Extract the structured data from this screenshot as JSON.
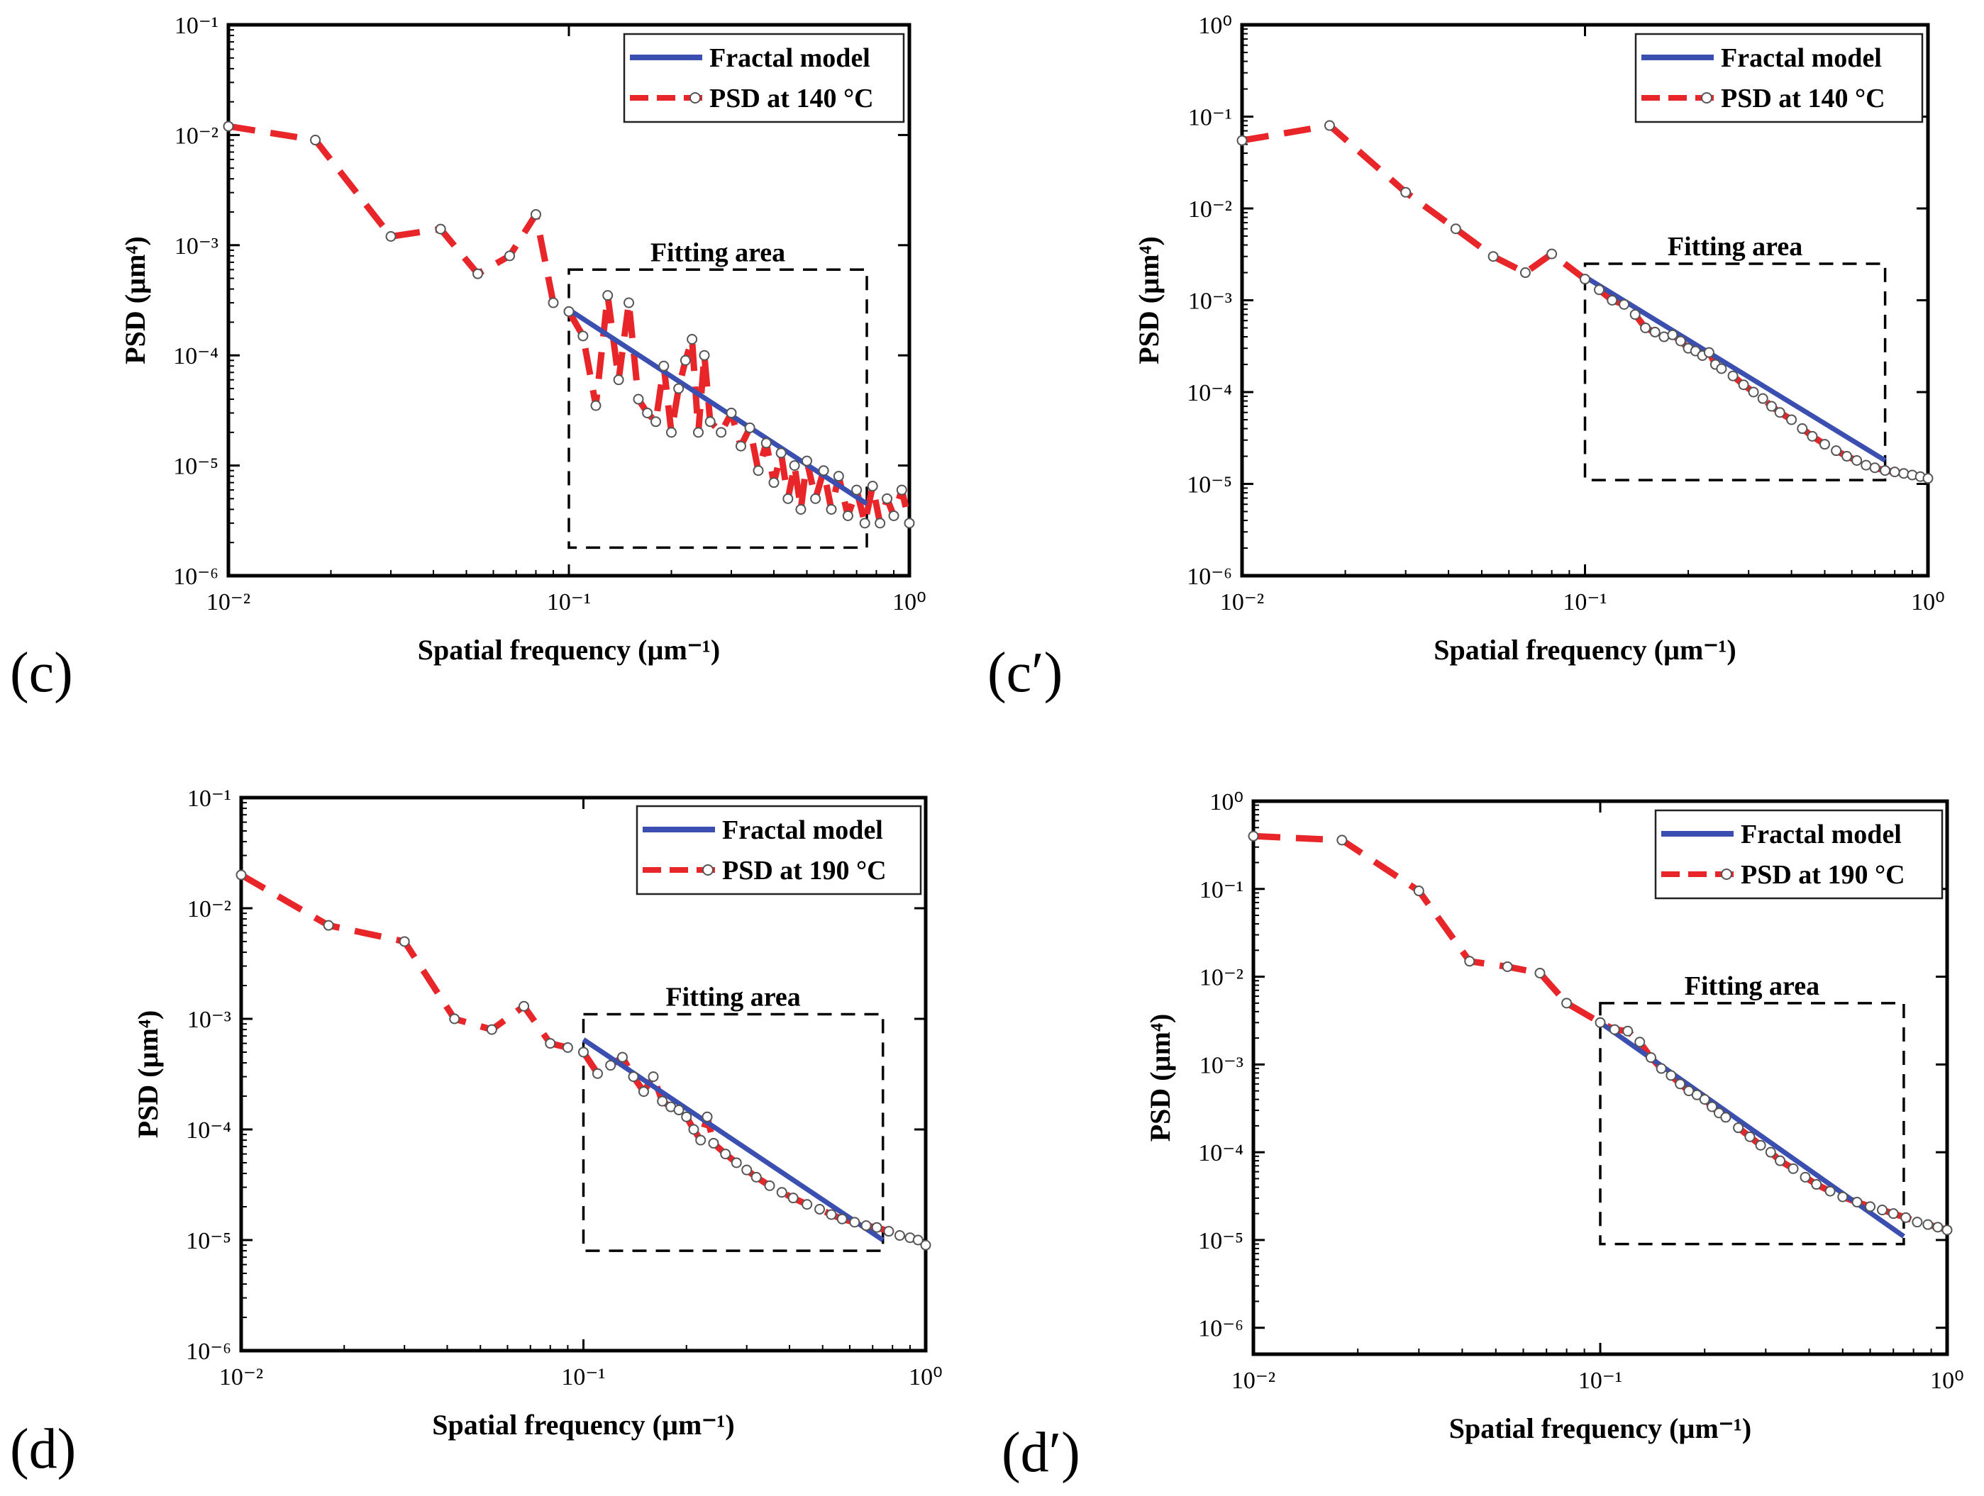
{
  "figure": {
    "x_label": "Spatial frequency (µm⁻¹)",
    "y_label": "PSD (µm⁴)",
    "legend_fit": "Fractal model",
    "fitting_area_label": "Fitting area",
    "colors": {
      "fit": "#3a4fb0",
      "psd": "#e8262a",
      "marker_fill": "#ffffff",
      "marker_edge": "#555555",
      "axis": "#000000"
    }
  },
  "chart_data": [
    {
      "panel": "(c)",
      "type": "line",
      "x_scale": "log",
      "y_scale": "log",
      "xlim": [
        0.01,
        1
      ],
      "ylim": [
        1e-06,
        0.1
      ],
      "x_ticks": [
        0.01,
        0.1,
        1
      ],
      "x_tick_labels": [
        "10⁻²",
        "10⁻¹",
        "10⁰"
      ],
      "y_ticks": [
        1e-06,
        1e-05,
        0.0001,
        0.001,
        0.01,
        0.1
      ],
      "y_tick_labels": [
        "10⁻⁶",
        "10⁻⁵",
        "10⁻⁴",
        "10⁻³",
        "10⁻²",
        "10⁻¹"
      ],
      "xlabel": "Spatial frequency (µm⁻¹)",
      "ylabel": "PSD (µm⁴)",
      "legend_psd": "PSD at 140 °C",
      "series": [
        {
          "name": "PSD at 140 °C",
          "x": [
            0.01,
            0.018,
            0.03,
            0.042,
            0.054,
            0.067,
            0.08,
            0.09,
            0.1,
            0.11,
            0.12,
            0.13,
            0.14,
            0.15,
            0.16,
            0.17,
            0.18,
            0.19,
            0.2,
            0.21,
            0.22,
            0.23,
            0.24,
            0.25,
            0.26,
            0.28,
            0.3,
            0.32,
            0.34,
            0.36,
            0.38,
            0.4,
            0.42,
            0.44,
            0.46,
            0.48,
            0.5,
            0.53,
            0.56,
            0.59,
            0.62,
            0.66,
            0.7,
            0.74,
            0.78,
            0.82,
            0.86,
            0.9,
            0.95,
            1.0
          ],
          "y": [
            0.012,
            0.009,
            0.0012,
            0.0014,
            0.00055,
            0.0008,
            0.0019,
            0.0003,
            0.00025,
            0.00015,
            3.5e-05,
            0.00035,
            6e-05,
            0.0003,
            4e-05,
            3e-05,
            2.5e-05,
            8e-05,
            2e-05,
            5e-05,
            9e-05,
            0.00014,
            2e-05,
            0.0001,
            2.5e-05,
            2e-05,
            3e-05,
            1.5e-05,
            2.2e-05,
            9e-06,
            1.6e-05,
            7e-06,
            1.3e-05,
            5e-06,
            1e-05,
            4e-06,
            1.1e-05,
            5e-06,
            9e-06,
            4e-06,
            8e-06,
            3.5e-06,
            6e-06,
            3e-06,
            6.5e-06,
            3e-06,
            5e-06,
            3.5e-06,
            6e-06,
            3e-06
          ]
        },
        {
          "name": "Fractal model",
          "x": [
            0.1,
            0.75
          ],
          "y": [
            0.00026,
            4.5e-06
          ]
        }
      ],
      "fitting_area": {
        "x": [
          0.1,
          0.75
        ],
        "y": [
          1.8e-06,
          0.0006
        ]
      }
    },
    {
      "panel": "(c′)",
      "type": "line",
      "x_scale": "log",
      "y_scale": "log",
      "xlim": [
        0.01,
        1
      ],
      "ylim": [
        1e-06,
        1
      ],
      "x_ticks": [
        0.01,
        0.1,
        1
      ],
      "x_tick_labels": [
        "10⁻²",
        "10⁻¹",
        "10⁰"
      ],
      "y_ticks": [
        1e-06,
        1e-05,
        0.0001,
        0.001,
        0.01,
        0.1,
        1
      ],
      "y_tick_labels": [
        "10⁻⁶",
        "10⁻⁵",
        "10⁻⁴",
        "10⁻³",
        "10⁻²",
        "10⁻¹",
        "10⁰"
      ],
      "xlabel": "Spatial frequency (µm⁻¹)",
      "ylabel": "PSD (µm⁴)",
      "legend_psd": "PSD at 140 °C",
      "series": [
        {
          "name": "PSD at 140 °C",
          "x": [
            0.01,
            0.018,
            0.03,
            0.042,
            0.054,
            0.067,
            0.08,
            0.1,
            0.11,
            0.12,
            0.13,
            0.14,
            0.15,
            0.16,
            0.17,
            0.18,
            0.19,
            0.2,
            0.21,
            0.22,
            0.23,
            0.24,
            0.25,
            0.27,
            0.29,
            0.31,
            0.33,
            0.35,
            0.37,
            0.4,
            0.43,
            0.46,
            0.5,
            0.54,
            0.58,
            0.62,
            0.66,
            0.7,
            0.75,
            0.8,
            0.85,
            0.9,
            0.95,
            1.0
          ],
          "y": [
            0.055,
            0.08,
            0.015,
            0.006,
            0.003,
            0.002,
            0.0032,
            0.0017,
            0.0013,
            0.001,
            0.0009,
            0.0007,
            0.0005,
            0.00045,
            0.0004,
            0.00042,
            0.00036,
            0.0003,
            0.00028,
            0.00025,
            0.00027,
            0.0002,
            0.00018,
            0.00015,
            0.00012,
            0.0001,
            8.5e-05,
            7e-05,
            6e-05,
            5e-05,
            4e-05,
            3.3e-05,
            2.7e-05,
            2.3e-05,
            2e-05,
            1.8e-05,
            1.6e-05,
            1.5e-05,
            1.4e-05,
            1.35e-05,
            1.3e-05,
            1.25e-05,
            1.2e-05,
            1.15e-05
          ]
        },
        {
          "name": "Fractal model",
          "x": [
            0.1,
            0.75
          ],
          "y": [
            0.0018,
            1.8e-05
          ]
        }
      ],
      "fitting_area": {
        "x": [
          0.1,
          0.75
        ],
        "y": [
          1.1e-05,
          0.0025
        ]
      }
    },
    {
      "panel": "(d)",
      "type": "line",
      "x_scale": "log",
      "y_scale": "log",
      "xlim": [
        0.01,
        1
      ],
      "ylim": [
        1e-06,
        0.1
      ],
      "x_ticks": [
        0.01,
        0.1,
        1
      ],
      "x_tick_labels": [
        "10⁻²",
        "10⁻¹",
        "10⁰"
      ],
      "y_ticks": [
        1e-06,
        1e-05,
        0.0001,
        0.001,
        0.01,
        0.1
      ],
      "y_tick_labels": [
        "10⁻⁶",
        "10⁻⁵",
        "10⁻⁴",
        "10⁻³",
        "10⁻²",
        "10⁻¹"
      ],
      "xlabel": "Spatial frequency (µm⁻¹)",
      "ylabel": "PSD (µm⁴)",
      "legend_psd": "PSD at 190 °C",
      "series": [
        {
          "name": "PSD at 190 °C",
          "x": [
            0.01,
            0.018,
            0.03,
            0.042,
            0.054,
            0.067,
            0.08,
            0.09,
            0.1,
            0.11,
            0.12,
            0.13,
            0.14,
            0.15,
            0.16,
            0.17,
            0.18,
            0.19,
            0.2,
            0.21,
            0.22,
            0.23,
            0.24,
            0.26,
            0.28,
            0.3,
            0.32,
            0.35,
            0.38,
            0.41,
            0.45,
            0.49,
            0.53,
            0.57,
            0.62,
            0.67,
            0.72,
            0.78,
            0.84,
            0.9,
            0.95,
            1.0
          ],
          "y": [
            0.02,
            0.007,
            0.005,
            0.001,
            0.0008,
            0.0013,
            0.0006,
            0.00055,
            0.0005,
            0.00032,
            0.00038,
            0.00045,
            0.0003,
            0.00022,
            0.0003,
            0.00018,
            0.00016,
            0.00015,
            0.00013,
            0.0001,
            8e-05,
            0.00013,
            7.5e-05,
            6e-05,
            5e-05,
            4.3e-05,
            3.7e-05,
            3.1e-05,
            2.7e-05,
            2.4e-05,
            2.1e-05,
            1.9e-05,
            1.7e-05,
            1.55e-05,
            1.45e-05,
            1.35e-05,
            1.3e-05,
            1.2e-05,
            1.1e-05,
            1.05e-05,
            1e-05,
            9e-06
          ]
        },
        {
          "name": "Fractal model",
          "x": [
            0.1,
            0.75
          ],
          "y": [
            0.00065,
            1e-05
          ]
        }
      ],
      "fitting_area": {
        "x": [
          0.1,
          0.75
        ],
        "y": [
          8e-06,
          0.0011
        ]
      }
    },
    {
      "panel": "(d′)",
      "type": "line",
      "x_scale": "log",
      "y_scale": "log",
      "xlim": [
        0.01,
        1
      ],
      "ylim": [
        5e-07,
        1
      ],
      "x_ticks": [
        0.01,
        0.1,
        1
      ],
      "x_tick_labels": [
        "10⁻²",
        "10⁻¹",
        "10⁰"
      ],
      "y_ticks": [
        1e-06,
        1e-05,
        0.0001,
        0.001,
        0.01,
        0.1,
        1
      ],
      "y_tick_labels": [
        "10⁻⁶",
        "10⁻⁵",
        "10⁻⁴",
        "10⁻³",
        "10⁻²",
        "10⁻¹",
        "10⁰"
      ],
      "xlabel": "Spatial frequency (µm⁻¹)",
      "ylabel": "PSD (µm⁴)",
      "legend_psd": "PSD at 190 °C",
      "series": [
        {
          "name": "PSD at 190 °C",
          "x": [
            0.01,
            0.018,
            0.03,
            0.042,
            0.054,
            0.067,
            0.08,
            0.1,
            0.11,
            0.12,
            0.13,
            0.14,
            0.15,
            0.16,
            0.17,
            0.18,
            0.19,
            0.2,
            0.21,
            0.22,
            0.23,
            0.25,
            0.27,
            0.29,
            0.31,
            0.33,
            0.36,
            0.39,
            0.42,
            0.46,
            0.5,
            0.55,
            0.6,
            0.65,
            0.7,
            0.76,
            0.82,
            0.88,
            0.94,
            1.0
          ],
          "y": [
            0.4,
            0.36,
            0.095,
            0.015,
            0.013,
            0.011,
            0.005,
            0.003,
            0.0025,
            0.0024,
            0.0018,
            0.0012,
            0.0009,
            0.00075,
            0.0006,
            0.0005,
            0.00045,
            0.0004,
            0.00033,
            0.00028,
            0.00025,
            0.00019,
            0.00015,
            0.00012,
            0.0001,
            8e-05,
            6.5e-05,
            5.2e-05,
            4.3e-05,
            3.6e-05,
            3.1e-05,
            2.7e-05,
            2.4e-05,
            2.2e-05,
            2e-05,
            1.8e-05,
            1.6e-05,
            1.5e-05,
            1.4e-05,
            1.3e-05
          ]
        },
        {
          "name": "Fractal model",
          "x": [
            0.1,
            0.75
          ],
          "y": [
            0.003,
            1.1e-05
          ]
        }
      ],
      "fitting_area": {
        "x": [
          0.1,
          0.75
        ],
        "y": [
          9e-06,
          0.005
        ]
      }
    }
  ]
}
